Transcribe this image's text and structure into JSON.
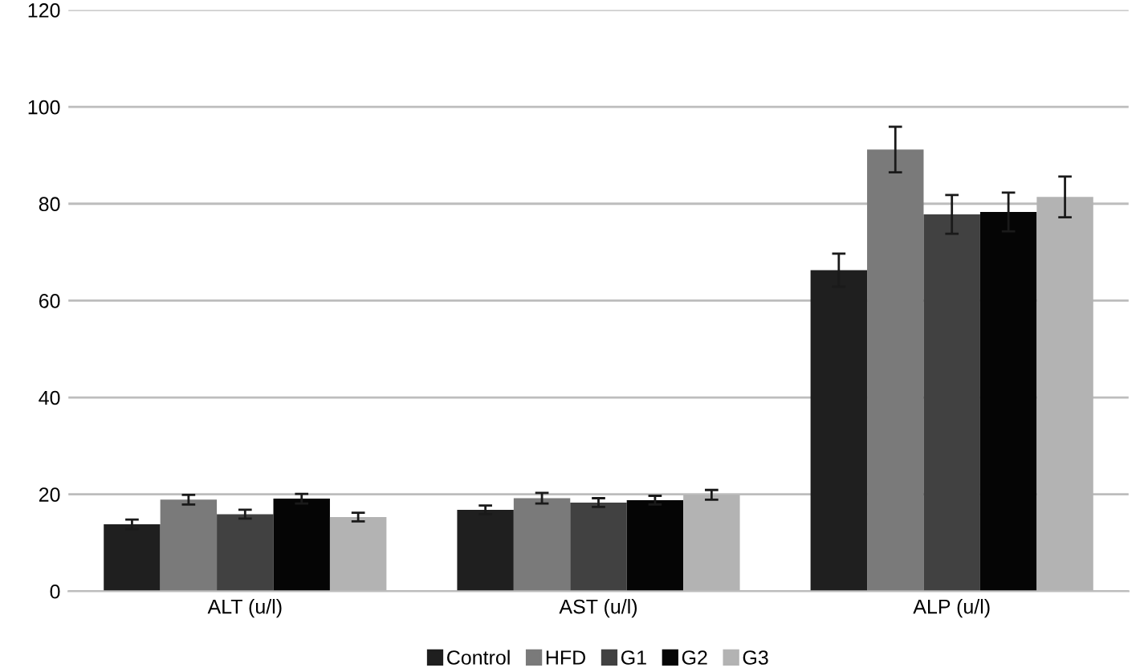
{
  "chart_data": {
    "type": "bar",
    "categories": [
      "ALT (u/l)",
      "AST (u/l)",
      "ALP (u/l)"
    ],
    "series": [
      {
        "name": "Control",
        "color": "#1f1f1f",
        "values": [
          13.8,
          16.8,
          66.3
        ],
        "errors": [
          1.0,
          0.9,
          3.4
        ]
      },
      {
        "name": "HFD",
        "color": "#7a7a7a",
        "values": [
          18.9,
          19.2,
          91.2
        ],
        "errors": [
          1.0,
          1.1,
          4.7
        ]
      },
      {
        "name": "G1",
        "color": "#414141",
        "values": [
          15.9,
          18.3,
          77.8
        ],
        "errors": [
          0.9,
          0.9,
          4.0
        ]
      },
      {
        "name": "G2",
        "color": "#050505",
        "values": [
          19.1,
          18.8,
          78.3
        ],
        "errors": [
          1.0,
          0.9,
          4.0
        ]
      },
      {
        "name": "G3",
        "color": "#b3b3b3",
        "values": [
          15.3,
          19.9,
          81.4
        ],
        "errors": [
          0.9,
          1.0,
          4.2
        ]
      }
    ],
    "ylim": [
      0,
      120
    ],
    "yticks": [
      0,
      20,
      40,
      60,
      80,
      100,
      120
    ],
    "grid": "y",
    "legend": "bottom"
  }
}
